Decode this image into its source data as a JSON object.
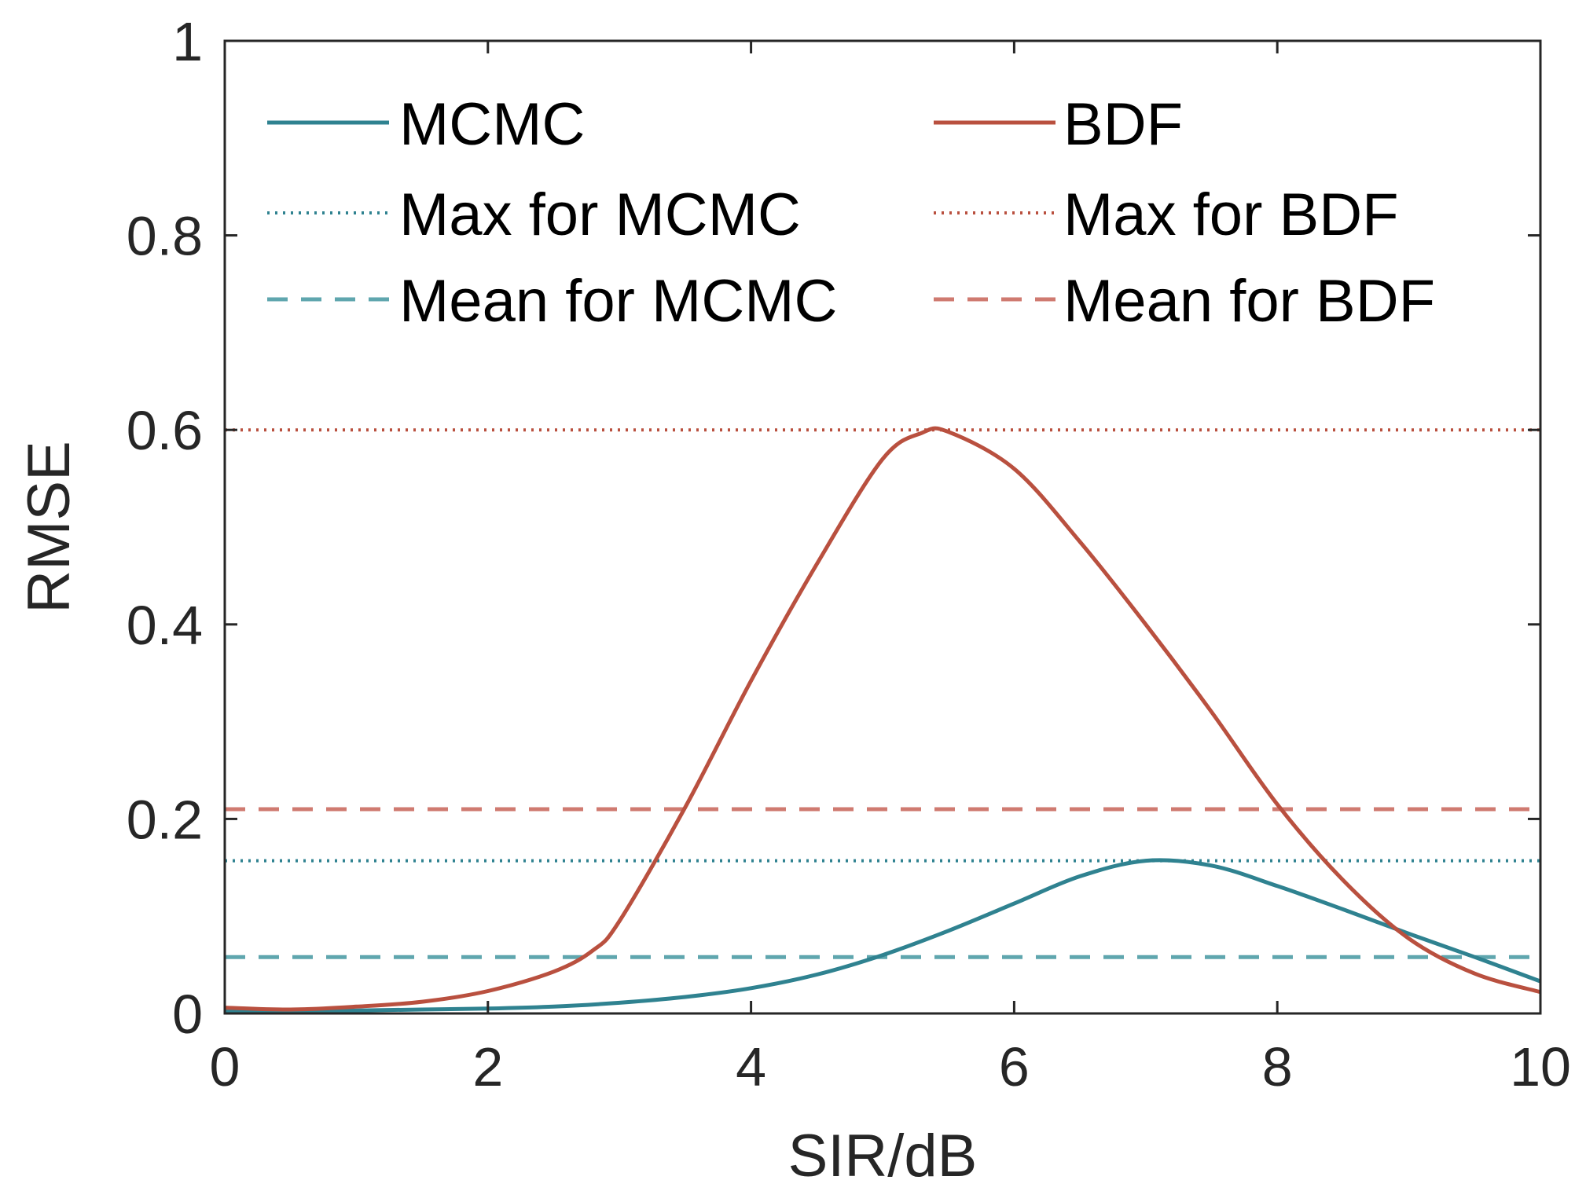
{
  "chart_data": {
    "type": "line",
    "title": "",
    "xlabel": "SIR/dB",
    "ylabel": "RMSE",
    "xlim": [
      0,
      10
    ],
    "ylim": [
      0,
      1
    ],
    "xticks": [
      0,
      2,
      4,
      6,
      8,
      10
    ],
    "yticks": [
      0,
      0.2,
      0.4,
      0.6,
      0.8,
      1
    ],
    "xtick_labels": [
      "0",
      "2",
      "4",
      "6",
      "8",
      "10"
    ],
    "ytick_labels": [
      "0",
      "0.2",
      "0.4",
      "0.6",
      "0.8",
      "1"
    ],
    "grid": false,
    "legend_position": "top",
    "colors": {
      "teal": "#2f8290",
      "red": "#b9503f",
      "teal_light": "#5fa6ae",
      "red_light": "#cf7a70"
    },
    "series": [
      {
        "name": "MCMC",
        "style": "solid",
        "color": "#2f8290",
        "x": [
          0,
          0.5,
          1,
          1.5,
          2,
          2.5,
          3,
          3.5,
          4,
          4.5,
          5,
          5.5,
          6,
          6.5,
          7,
          7.5,
          8,
          8.5,
          9,
          9.5,
          10
        ],
        "y": [
          0.003,
          0.002,
          0.003,
          0.004,
          0.005,
          0.007,
          0.011,
          0.017,
          0.026,
          0.04,
          0.06,
          0.085,
          0.113,
          0.141,
          0.157,
          0.152,
          0.131,
          0.107,
          0.082,
          0.058,
          0.033
        ]
      },
      {
        "name": "BDF",
        "style": "solid",
        "color": "#b9503f",
        "x": [
          0,
          0.5,
          1,
          1.5,
          2,
          2.5,
          2.8,
          3,
          3.5,
          4,
          4.5,
          5,
          5.3,
          5.5,
          6,
          6.5,
          7,
          7.5,
          8,
          8.5,
          9,
          9.5,
          10
        ],
        "y": [
          0.006,
          0.004,
          0.007,
          0.012,
          0.023,
          0.043,
          0.065,
          0.095,
          0.212,
          0.342,
          0.462,
          0.57,
          0.597,
          0.598,
          0.56,
          0.485,
          0.4,
          0.31,
          0.215,
          0.137,
          0.077,
          0.041,
          0.022
        ]
      },
      {
        "name": "Max for MCMC",
        "style": "dotted",
        "color": "#2f8290",
        "value": 0.157
      },
      {
        "name": "Max for BDF",
        "style": "dotted",
        "color": "#b9503f",
        "value": 0.6
      },
      {
        "name": "Mean for MCMC",
        "style": "dashed",
        "color": "#5fa6ae",
        "value": 0.058
      },
      {
        "name": "Mean for BDF",
        "style": "dashed",
        "color": "#cf7a70",
        "value": 0.21
      }
    ]
  }
}
